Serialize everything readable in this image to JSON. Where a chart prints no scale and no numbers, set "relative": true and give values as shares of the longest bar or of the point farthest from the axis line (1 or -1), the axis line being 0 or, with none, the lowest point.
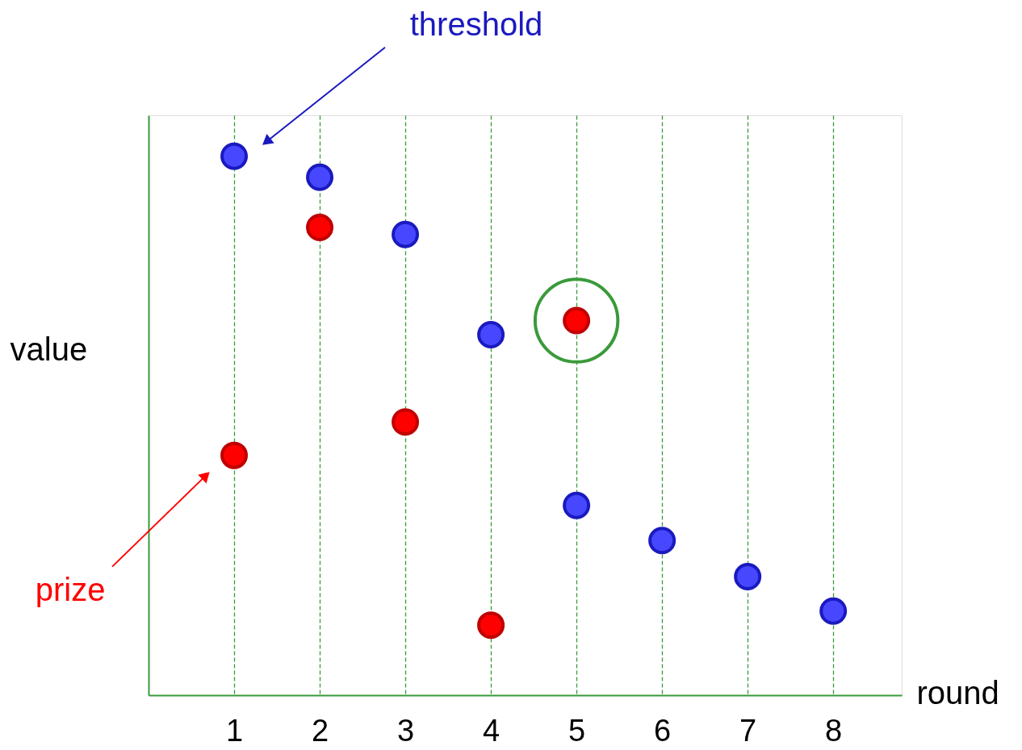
{
  "chart_data": {
    "type": "scatter",
    "relative": true,
    "xlabel": "round",
    "ylabel": "value",
    "x": [
      1,
      2,
      3,
      4,
      5,
      6,
      7,
      8
    ],
    "xlim": [
      0,
      8.8
    ],
    "xticks": [
      1,
      2,
      3,
      4,
      5,
      6,
      7,
      8
    ],
    "grid": "x",
    "tick_labels": "x",
    "marker": "circle",
    "series": [
      {
        "name": "threshold",
        "color": "#4747ff",
        "values": [
          1,
          0.961,
          0.855,
          0.669,
          0.352,
          0.287,
          0.22,
          0.156
        ]
      },
      {
        "name": "prize",
        "color": "#ff0000",
        "values": [
          0.445,
          0.868,
          0.507,
          0.13,
          0.695,
          null,
          null,
          null
        ]
      },
      {
        "color": "#3a9a3a",
        "values": [
          null,
          null,
          null,
          null,
          0.695,
          null,
          null,
          null
        ]
      }
    ]
  }
}
